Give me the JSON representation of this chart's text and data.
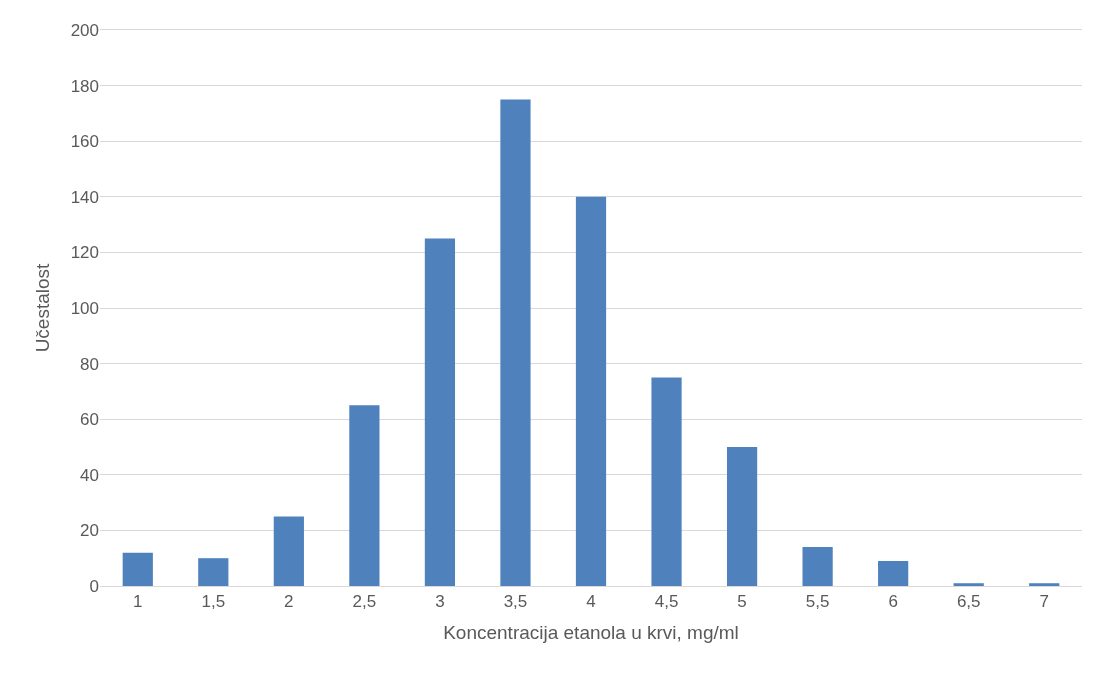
{
  "chart_data": {
    "type": "bar",
    "xlabel": "Koncentracija etanola u krvi, mg/ml",
    "ylabel": "Učestalost",
    "categories": [
      "1",
      "1,5",
      "2",
      "2,5",
      "3",
      "3,5",
      "4",
      "4,5",
      "5",
      "5,5",
      "6",
      "6,5",
      "7"
    ],
    "values": [
      12,
      10,
      25,
      65,
      125,
      175,
      140,
      75,
      50,
      14,
      9,
      1,
      1
    ],
    "color": "#4f81bd",
    "ylim": [
      0,
      200
    ],
    "yticks": [
      0,
      20,
      40,
      60,
      80,
      100,
      120,
      140,
      160,
      180,
      200
    ],
    "grid": "y"
  }
}
